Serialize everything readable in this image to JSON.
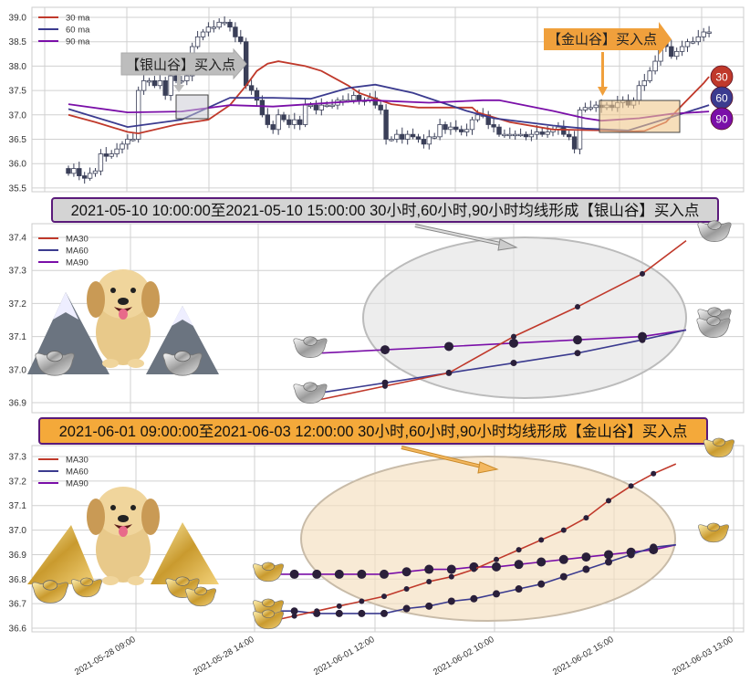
{
  "chart_data": [
    {
      "type": "candlestick",
      "panel": "top",
      "ylim": [
        35.5,
        39.0
      ],
      "yticks": [
        "35.5",
        "36.0",
        "36.5",
        "37.0",
        "37.5",
        "38.0",
        "38.5",
        "39.0"
      ],
      "grid": true,
      "legend": {
        "placement": "top-left",
        "entries": [
          "30 ma",
          "60 ma",
          "90 ma"
        ]
      },
      "closes": [
        35.8,
        35.9,
        35.75,
        35.7,
        35.8,
        35.85,
        36.2,
        36.15,
        36.2,
        36.3,
        36.4,
        36.5,
        36.5,
        37.5,
        37.7,
        37.7,
        37.6,
        37.7,
        37.4,
        37.8,
        37.7,
        37.7,
        37.8,
        38.4,
        38.6,
        38.7,
        38.8,
        38.8,
        38.9,
        38.9,
        38.8,
        38.6,
        38.5,
        37.6,
        37.5,
        37.3,
        37.0,
        36.8,
        36.7,
        37.0,
        36.9,
        36.8,
        36.9,
        36.8,
        37.2,
        37.2,
        37.1,
        37.2,
        37.2,
        37.2,
        37.3,
        37.3,
        37.3,
        37.4,
        37.3,
        37.3,
        37.35,
        37.2,
        37.1,
        36.5,
        36.5,
        36.6,
        36.5,
        36.6,
        36.55,
        36.5,
        36.4,
        36.55,
        36.55,
        36.8,
        36.7,
        36.75,
        36.7,
        36.65,
        36.7,
        36.9,
        37.0,
        37.0,
        36.8,
        36.75,
        36.6,
        36.6,
        36.6,
        36.6,
        36.6,
        36.55,
        36.6,
        36.65,
        36.6,
        36.65,
        36.7,
        36.75,
        36.6,
        36.55,
        36.3,
        37.1,
        37.15,
        37.15,
        37.2,
        37.15,
        37.2,
        37.15,
        37.25,
        37.3,
        37.2,
        37.3,
        37.6,
        37.7,
        37.9,
        38.1,
        38.5,
        38.4,
        38.2,
        38.3,
        38.4,
        38.5,
        38.5,
        38.6,
        38.7,
        38.7
      ],
      "series": [
        {
          "name": "30 ma",
          "color": "#c0392b",
          "points": [
            [
              0,
              37.0
            ],
            [
              5,
              36.85
            ],
            [
              11,
              36.65
            ],
            [
              13,
              36.62
            ],
            [
              20,
              36.8
            ],
            [
              26,
              36.9
            ],
            [
              30,
              37.2
            ],
            [
              33,
              37.6
            ],
            [
              35,
              37.9
            ],
            [
              37,
              38.05
            ],
            [
              39,
              38.1
            ],
            [
              44,
              38.0
            ],
            [
              47,
              37.9
            ],
            [
              52,
              37.6
            ],
            [
              54,
              37.45
            ],
            [
              60,
              37.22
            ],
            [
              65,
              37.15
            ],
            [
              75,
              37.15
            ],
            [
              76,
              37.05
            ],
            [
              82,
              36.85
            ],
            [
              90,
              36.7
            ],
            [
              100,
              36.68
            ],
            [
              104,
              36.66
            ],
            [
              107,
              36.67
            ],
            [
              111,
              36.85
            ],
            [
              114,
              37.2
            ],
            [
              118,
              37.65
            ],
            [
              119,
              37.78
            ]
          ]
        },
        {
          "name": "60 ma",
          "color": "#3b3b8f",
          "points": [
            [
              0,
              37.12
            ],
            [
              11,
              36.75
            ],
            [
              21,
              36.9
            ],
            [
              30,
              37.35
            ],
            [
              38,
              37.35
            ],
            [
              45,
              37.33
            ],
            [
              52,
              37.55
            ],
            [
              57,
              37.62
            ],
            [
              64,
              37.45
            ],
            [
              74,
              37.08
            ],
            [
              79,
              36.93
            ],
            [
              90,
              36.78
            ],
            [
              96,
              36.72
            ],
            [
              104,
              36.68
            ],
            [
              111,
              36.92
            ],
            [
              119,
              37.2
            ]
          ]
        },
        {
          "name": "90 ma",
          "color": "#7a0fa8",
          "points": [
            [
              0,
              37.22
            ],
            [
              11,
              37.05
            ],
            [
              21,
              37.07
            ],
            [
              30,
              37.2
            ],
            [
              38,
              37.17
            ],
            [
              56,
              37.3
            ],
            [
              67,
              37.25
            ],
            [
              77,
              37.3
            ],
            [
              80,
              37.3
            ],
            [
              90,
              37.08
            ],
            [
              96,
              36.93
            ],
            [
              99,
              36.88
            ],
            [
              106,
              36.93
            ],
            [
              112,
              37.02
            ],
            [
              119,
              37.07
            ]
          ]
        }
      ],
      "annotations": [
        {
          "text": "【银山谷】买入点",
          "color": "#bdbdbd"
        },
        {
          "text": "【金山谷】买入点",
          "color": "#f0a03c"
        }
      ],
      "badges": [
        {
          "text": "30",
          "color": "#c0392b"
        },
        {
          "text": "60",
          "color": "#3b3b8f"
        },
        {
          "text": "90",
          "color": "#7a0fa8"
        }
      ]
    },
    {
      "type": "line",
      "panel": "middle",
      "title": "2021-05-10 10:00:00至2021-05-10 15:00:00 30小时,60小时,90小时均线形成【银山谷】买入点",
      "title_bg": "#d4d4d4",
      "ylim": [
        36.9,
        37.4
      ],
      "yticks": [
        "36.9",
        "37.0",
        "37.1",
        "37.2",
        "37.3",
        "37.4"
      ],
      "grid": true,
      "legend": {
        "placement": "top-left",
        "entries": [
          "MA30",
          "MA60",
          "MA90"
        ]
      },
      "series": [
        {
          "name": "MA30",
          "color": "#c0392b",
          "values": [
            36.91,
            36.95,
            36.99,
            37.1,
            37.19,
            37.29,
            37.39
          ]
        },
        {
          "name": "MA60",
          "color": "#3b3b8f",
          "values": [
            36.93,
            36.96,
            36.99,
            37.02,
            37.05,
            37.09,
            37.12
          ]
        },
        {
          "name": "MA90",
          "color": "#7a0fa8",
          "values": [
            37.05,
            37.06,
            37.07,
            37.08,
            37.09,
            37.1,
            37.12
          ]
        }
      ]
    },
    {
      "type": "line",
      "panel": "bottom",
      "title": "2021-06-01 09:00:00至2021-06-03 12:00:00 30小时,60小时,90小时均线形成【金山谷】买入点",
      "title_bg": "#f4a93a",
      "ylim": [
        36.6,
        37.3
      ],
      "yticks": [
        "36.6",
        "36.7",
        "36.8",
        "36.9",
        "37.0",
        "37.1",
        "37.2",
        "37.3"
      ],
      "xticks": [
        "2021-05-28 09:00",
        "2021-05-28 14:00",
        "2021-06-01 12:00",
        "2021-06-02 10:00",
        "2021-06-02 15:00",
        "2021-06-03 13:00"
      ],
      "grid": true,
      "legend": {
        "placement": "top-left",
        "entries": [
          "MA30",
          "MA60",
          "MA90"
        ]
      },
      "series": [
        {
          "name": "MA30",
          "color": "#c0392b",
          "values": [
            36.63,
            36.65,
            36.67,
            36.69,
            36.71,
            36.73,
            36.76,
            36.79,
            36.81,
            36.84,
            36.88,
            36.92,
            36.96,
            37.0,
            37.05,
            37.12,
            37.18,
            37.23,
            37.27
          ]
        },
        {
          "name": "MA60",
          "color": "#3b3b8f",
          "values": [
            36.67,
            36.67,
            36.66,
            36.66,
            36.66,
            36.66,
            36.68,
            36.69,
            36.71,
            36.72,
            36.74,
            36.76,
            36.78,
            36.81,
            36.84,
            36.87,
            36.9,
            36.93,
            36.94
          ]
        },
        {
          "name": "MA90",
          "color": "#7a0fa8",
          "values": [
            36.82,
            36.82,
            36.82,
            36.82,
            36.82,
            36.82,
            36.83,
            36.84,
            36.84,
            36.85,
            36.85,
            36.86,
            36.87,
            36.88,
            36.89,
            36.9,
            36.91,
            36.92,
            36.94
          ]
        }
      ]
    }
  ]
}
